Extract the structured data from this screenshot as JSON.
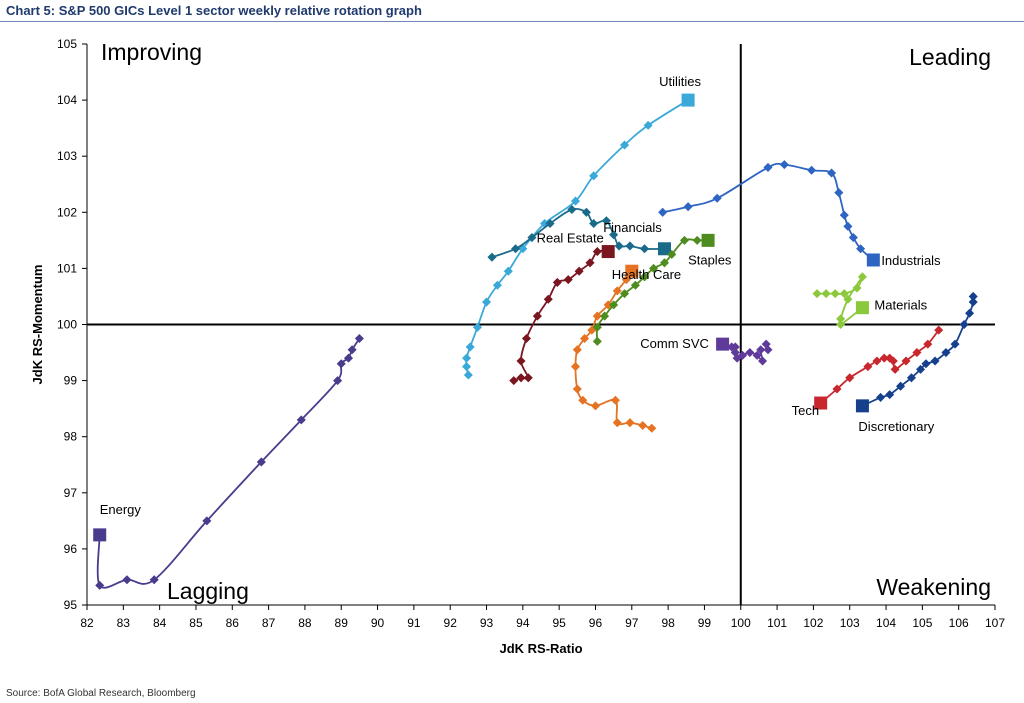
{
  "header": {
    "title": "Chart 5: S&P 500 GICs Level 1 sector weekly relative rotation graph"
  },
  "footer": {
    "source": "Source: BofA Global Research, Bloomberg"
  },
  "chart_data": {
    "type": "scatter",
    "title": "Chart 5: S&P 500 GICs Level 1 sector weekly relative rotation graph",
    "xlabel": "JdK RS-Ratio",
    "ylabel": "JdK RS-Momentum",
    "xlim": [
      82,
      107
    ],
    "ylim": [
      95,
      105
    ],
    "xticks": [
      "82",
      "83",
      "84",
      "85",
      "86",
      "87",
      "88",
      "89",
      "90",
      "91",
      "92",
      "93",
      "94",
      "95",
      "96",
      "97",
      "98",
      "99",
      "100",
      "101",
      "102",
      "103",
      "104",
      "105",
      "106",
      "107"
    ],
    "yticks": [
      "95",
      "96",
      "97",
      "98",
      "99",
      "100",
      "101",
      "102",
      "103",
      "104",
      "105"
    ],
    "reference_lines": {
      "x": 100,
      "y": 100
    },
    "grid": false,
    "quadrants": {
      "top_left": "Improving",
      "top_right": "Leading",
      "bottom_left": "Lagging",
      "bottom_right": "Weakening"
    },
    "series": [
      {
        "name": "Energy",
        "color": "#4b3b8c",
        "points": [
          [
            89.5,
            99.75
          ],
          [
            89.3,
            99.55
          ],
          [
            89.2,
            99.4
          ],
          [
            89.0,
            99.3
          ],
          [
            88.9,
            99.0
          ],
          [
            87.9,
            98.3
          ],
          [
            86.8,
            97.55
          ],
          [
            85.3,
            96.5
          ],
          [
            83.85,
            95.45
          ],
          [
            83.1,
            95.45
          ],
          [
            82.35,
            95.35
          ],
          [
            82.35,
            96.25
          ]
        ]
      },
      {
        "name": "Utilities",
        "color": "#3aa9d9",
        "points": [
          [
            92.5,
            99.1
          ],
          [
            92.45,
            99.25
          ],
          [
            92.45,
            99.4
          ],
          [
            92.55,
            99.6
          ],
          [
            92.75,
            99.95
          ],
          [
            93.0,
            100.4
          ],
          [
            93.3,
            100.7
          ],
          [
            93.6,
            100.95
          ],
          [
            94.0,
            101.35
          ],
          [
            94.6,
            101.8
          ],
          [
            95.45,
            102.2
          ],
          [
            95.95,
            102.65
          ],
          [
            96.8,
            103.2
          ],
          [
            97.45,
            103.55
          ],
          [
            98.55,
            104.0
          ]
        ]
      },
      {
        "name": "Real Estate",
        "color": "#7a1620",
        "points": [
          [
            93.75,
            99.0
          ],
          [
            93.95,
            99.05
          ],
          [
            94.15,
            99.05
          ],
          [
            93.95,
            99.35
          ],
          [
            94.1,
            99.75
          ],
          [
            94.4,
            100.15
          ],
          [
            94.7,
            100.45
          ],
          [
            94.95,
            100.75
          ],
          [
            95.25,
            100.8
          ],
          [
            95.55,
            100.95
          ],
          [
            95.85,
            101.1
          ],
          [
            96.05,
            101.3
          ],
          [
            96.35,
            101.3
          ]
        ]
      },
      {
        "name": "Financials",
        "color": "#1a6a8a",
        "points": [
          [
            93.15,
            101.2
          ],
          [
            93.8,
            101.35
          ],
          [
            94.25,
            101.55
          ],
          [
            94.75,
            101.8
          ],
          [
            95.35,
            102.05
          ],
          [
            95.75,
            102.0
          ],
          [
            95.95,
            101.8
          ],
          [
            96.3,
            101.85
          ],
          [
            96.5,
            101.6
          ],
          [
            96.65,
            101.4
          ],
          [
            96.95,
            101.4
          ],
          [
            97.35,
            101.35
          ],
          [
            97.9,
            101.35
          ]
        ]
      },
      {
        "name": "Health Care",
        "color": "#e57322",
        "points": [
          [
            97.55,
            98.15
          ],
          [
            97.3,
            98.2
          ],
          [
            96.95,
            98.25
          ],
          [
            96.6,
            98.25
          ],
          [
            96.55,
            98.65
          ],
          [
            96.0,
            98.55
          ],
          [
            95.65,
            98.65
          ],
          [
            95.5,
            98.85
          ],
          [
            95.45,
            99.25
          ],
          [
            95.5,
            99.55
          ],
          [
            95.7,
            99.75
          ],
          [
            95.9,
            99.9
          ],
          [
            96.05,
            100.15
          ],
          [
            96.35,
            100.35
          ],
          [
            96.6,
            100.6
          ],
          [
            96.85,
            100.8
          ],
          [
            97.0,
            100.95
          ]
        ]
      },
      {
        "name": "Staples",
        "color": "#4f8c1f",
        "points": [
          [
            96.05,
            99.7
          ],
          [
            96.05,
            99.95
          ],
          [
            96.25,
            100.15
          ],
          [
            96.5,
            100.35
          ],
          [
            96.8,
            100.55
          ],
          [
            97.1,
            100.7
          ],
          [
            97.35,
            100.85
          ],
          [
            97.6,
            101.0
          ],
          [
            97.9,
            101.1
          ],
          [
            98.1,
            101.25
          ],
          [
            98.45,
            101.5
          ],
          [
            98.8,
            101.5
          ],
          [
            99.1,
            101.5
          ]
        ]
      },
      {
        "name": "Comm SVC",
        "color": "#5f3a9b",
        "points": [
          [
            100.7,
            99.65
          ],
          [
            100.75,
            99.55
          ],
          [
            100.55,
            99.55
          ],
          [
            100.6,
            99.35
          ],
          [
            100.45,
            99.45
          ],
          [
            100.25,
            99.5
          ],
          [
            100.05,
            99.45
          ],
          [
            99.9,
            99.4
          ],
          [
            99.85,
            99.5
          ],
          [
            99.85,
            99.6
          ],
          [
            99.75,
            99.6
          ],
          [
            99.5,
            99.65
          ]
        ]
      },
      {
        "name": "Industrials",
        "color": "#2e64c2",
        "points": [
          [
            97.85,
            102.0
          ],
          [
            98.55,
            102.1
          ],
          [
            99.35,
            102.25
          ],
          [
            100.75,
            102.8
          ],
          [
            101.2,
            102.85
          ],
          [
            101.95,
            102.75
          ],
          [
            102.5,
            102.7
          ],
          [
            102.7,
            102.35
          ],
          [
            102.85,
            101.95
          ],
          [
            102.95,
            101.75
          ],
          [
            103.1,
            101.55
          ],
          [
            103.3,
            101.35
          ],
          [
            103.65,
            101.15
          ]
        ]
      },
      {
        "name": "Materials",
        "color": "#8cc83c",
        "points": [
          [
            102.1,
            100.55
          ],
          [
            102.35,
            100.55
          ],
          [
            102.6,
            100.55
          ],
          [
            102.85,
            100.55
          ],
          [
            103.2,
            100.65
          ],
          [
            103.35,
            100.85
          ],
          [
            102.95,
            100.45
          ],
          [
            102.75,
            100.1
          ],
          [
            102.75,
            100.0
          ],
          [
            103.35,
            100.3
          ]
        ]
      },
      {
        "name": "Tech",
        "color": "#c8282d",
        "points": [
          [
            105.45,
            99.9
          ],
          [
            105.15,
            99.65
          ],
          [
            104.85,
            99.5
          ],
          [
            104.55,
            99.35
          ],
          [
            104.25,
            99.2
          ],
          [
            104.2,
            99.35
          ],
          [
            104.1,
            99.4
          ],
          [
            103.95,
            99.4
          ],
          [
            103.75,
            99.35
          ],
          [
            103.5,
            99.25
          ],
          [
            103.0,
            99.05
          ],
          [
            102.65,
            98.85
          ],
          [
            102.2,
            98.6
          ]
        ]
      },
      {
        "name": "Discretionary",
        "color": "#17408c",
        "points": [
          [
            106.4,
            100.5
          ],
          [
            106.4,
            100.4
          ],
          [
            106.3,
            100.2
          ],
          [
            106.15,
            100.0
          ],
          [
            105.9,
            99.65
          ],
          [
            105.65,
            99.5
          ],
          [
            105.35,
            99.35
          ],
          [
            105.1,
            99.3
          ],
          [
            104.95,
            99.2
          ],
          [
            104.7,
            99.05
          ],
          [
            104.4,
            98.9
          ],
          [
            104.1,
            98.75
          ],
          [
            103.85,
            98.7
          ],
          [
            103.35,
            98.55
          ]
        ]
      }
    ]
  }
}
